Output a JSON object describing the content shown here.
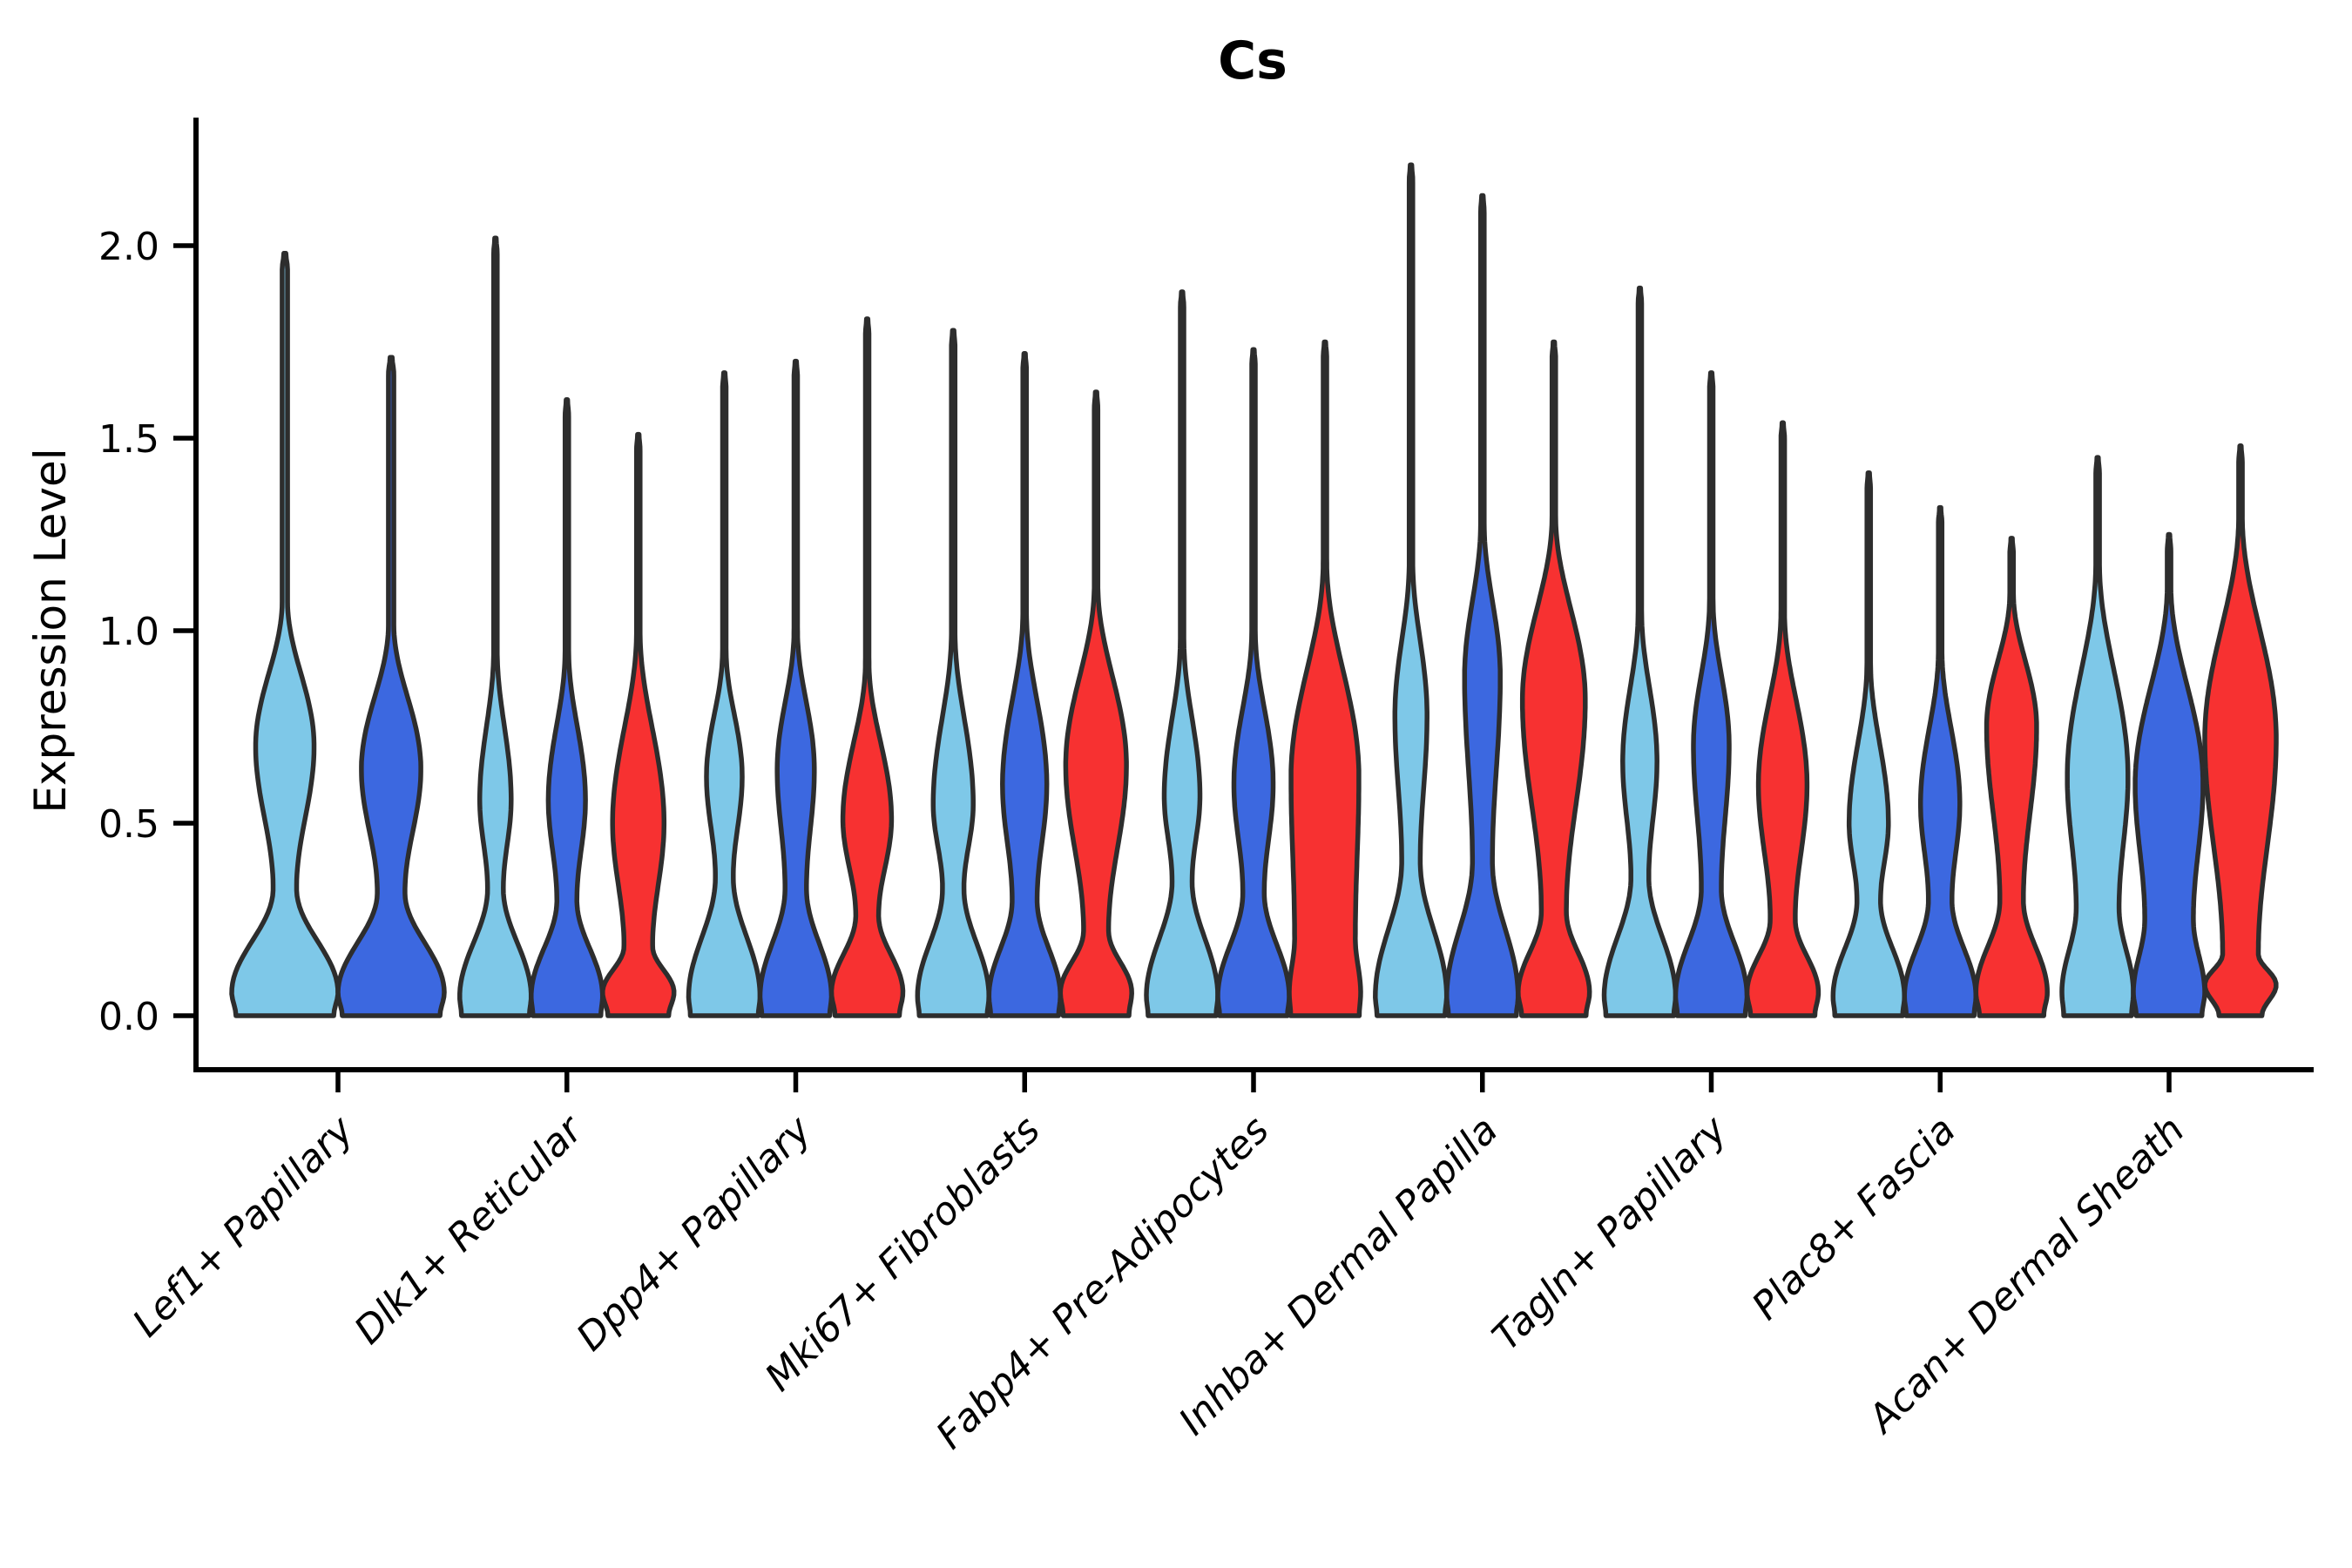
{
  "chart_data": {
    "type": "violin",
    "title": "Cs",
    "xlabel": "",
    "ylabel": "Expression Level",
    "ytick_labels": [
      "0.0",
      "0.5",
      "1.0",
      "1.5",
      "2.0"
    ],
    "ytick_values": [
      0.0,
      0.5,
      1.0,
      1.5,
      2.0
    ],
    "ylim": [
      -0.14,
      2.32
    ],
    "grid": false,
    "legend_position": "none",
    "series_colors": [
      "#7EC8E8",
      "#3C68E0",
      "#F73131"
    ],
    "outline_color": "#2D2D2D",
    "spine_color": "#000000",
    "categories": [
      "Lef1+ Papillary",
      "Dlk1+ Reticular",
      "Dpp4+ Papillary",
      "Mki67+ Fibroblasts",
      "Fabp4+ Pre-Adipocytes",
      "Inhba+ Dermal Papilla",
      "Tagln+ Papillary",
      "Plac8+ Fascia",
      "Acan+ Dermal Sheath"
    ],
    "groups": [
      {
        "category": "Lef1+ Papillary",
        "violins": [
          {
            "series": 0,
            "max": 1.98,
            "base": 0.92,
            "lobe_y": 0.06,
            "waist_y": 0.33,
            "waist_w": 0.22,
            "bulge_y": 0.7,
            "bulge_w": 0.55,
            "neck_y": 1.08
          },
          {
            "series": 1,
            "max": 1.71,
            "base": 0.92,
            "lobe_y": 0.06,
            "waist_y": 0.32,
            "waist_w": 0.26,
            "bulge_y": 0.64,
            "bulge_w": 0.56,
            "neck_y": 1.02
          }
        ]
      },
      {
        "category": "Dlk1+ Reticular",
        "violins": [
          {
            "series": 0,
            "max": 2.02,
            "base": 0.95,
            "lobe_y": 0.05,
            "waist_y": 0.33,
            "waist_w": 0.22,
            "bulge_y": 0.56,
            "bulge_w": 0.44,
            "neck_y": 0.95
          },
          {
            "series": 1,
            "max": 1.6,
            "base": 0.95,
            "lobe_y": 0.05,
            "waist_y": 0.3,
            "waist_w": 0.28,
            "bulge_y": 0.56,
            "bulge_w": 0.52,
            "neck_y": 0.95
          },
          {
            "series": 2,
            "max": 1.51,
            "base": 0.85,
            "lobe_y": 0.06,
            "waist_y": 0.18,
            "waist_w": 0.4,
            "bulge_y": 0.5,
            "bulge_w": 0.72,
            "neck_y": 1.0
          }
        ]
      },
      {
        "category": "Dpp4+ Papillary",
        "violins": [
          {
            "series": 0,
            "max": 1.67,
            "base": 0.95,
            "lobe_y": 0.05,
            "waist_y": 0.36,
            "waist_w": 0.25,
            "bulge_y": 0.62,
            "bulge_w": 0.5,
            "neck_y": 0.95
          },
          {
            "series": 1,
            "max": 1.7,
            "base": 0.95,
            "lobe_y": 0.05,
            "waist_y": 0.33,
            "waist_w": 0.3,
            "bulge_y": 0.64,
            "bulge_w": 0.52,
            "neck_y": 1.0
          },
          {
            "series": 2,
            "max": 1.81,
            "base": 0.9,
            "lobe_y": 0.06,
            "waist_y": 0.26,
            "waist_w": 0.32,
            "bulge_y": 0.51,
            "bulge_w": 0.68,
            "neck_y": 0.92
          }
        ]
      },
      {
        "category": "Mki67+ Fibroblasts",
        "violins": [
          {
            "series": 0,
            "max": 1.78,
            "base": 0.95,
            "lobe_y": 0.05,
            "waist_y": 0.33,
            "waist_w": 0.3,
            "bulge_y": 0.55,
            "bulge_w": 0.56,
            "neck_y": 1.0
          },
          {
            "series": 1,
            "max": 1.72,
            "base": 0.95,
            "lobe_y": 0.05,
            "waist_y": 0.3,
            "waist_w": 0.35,
            "bulge_y": 0.6,
            "bulge_w": 0.62,
            "neck_y": 1.05
          },
          {
            "series": 2,
            "max": 1.62,
            "base": 0.92,
            "lobe_y": 0.06,
            "waist_y": 0.22,
            "waist_w": 0.35,
            "bulge_y": 0.65,
            "bulge_w": 0.85,
            "neck_y": 1.12
          }
        ]
      },
      {
        "category": "Fabp4+ Pre-Adipocytes",
        "violins": [
          {
            "series": 0,
            "max": 1.88,
            "base": 0.95,
            "lobe_y": 0.05,
            "waist_y": 0.35,
            "waist_w": 0.28,
            "bulge_y": 0.57,
            "bulge_w": 0.5,
            "neck_y": 0.98
          },
          {
            "series": 1,
            "max": 1.73,
            "base": 0.95,
            "lobe_y": 0.05,
            "waist_y": 0.32,
            "waist_w": 0.3,
            "bulge_y": 0.6,
            "bulge_w": 0.55,
            "neck_y": 1.0
          },
          {
            "series": 2,
            "max": 1.75,
            "base": 0.96,
            "lobe_y": 0.06,
            "waist_y": 0.2,
            "waist_w": 0.85,
            "bulge_y": 0.62,
            "bulge_w": 0.95,
            "neck_y": 1.18
          }
        ]
      },
      {
        "category": "Inhba+ Dermal Papilla",
        "violins": [
          {
            "series": 0,
            "max": 2.21,
            "base": 0.95,
            "lobe_y": 0.05,
            "waist_y": 0.4,
            "waist_w": 0.26,
            "bulge_y": 0.78,
            "bulge_w": 0.45,
            "neck_y": 1.18
          },
          {
            "series": 1,
            "max": 2.13,
            "base": 0.95,
            "lobe_y": 0.05,
            "waist_y": 0.4,
            "waist_w": 0.28,
            "bulge_y": 0.88,
            "bulge_w": 0.5,
            "neck_y": 1.28
          },
          {
            "series": 2,
            "max": 1.75,
            "base": 0.9,
            "lobe_y": 0.06,
            "waist_y": 0.27,
            "waist_w": 0.35,
            "bulge_y": 0.82,
            "bulge_w": 0.88,
            "neck_y": 1.3
          }
        ]
      },
      {
        "category": "Tagln+ Papillary",
        "violins": [
          {
            "series": 0,
            "max": 1.89,
            "base": 0.95,
            "lobe_y": 0.05,
            "waist_y": 0.36,
            "waist_w": 0.25,
            "bulge_y": 0.66,
            "bulge_w": 0.48,
            "neck_y": 1.05
          },
          {
            "series": 1,
            "max": 1.67,
            "base": 0.95,
            "lobe_y": 0.05,
            "waist_y": 0.33,
            "waist_w": 0.28,
            "bulge_y": 0.7,
            "bulge_w": 0.5,
            "neck_y": 1.08
          },
          {
            "series": 2,
            "max": 1.54,
            "base": 0.9,
            "lobe_y": 0.06,
            "waist_y": 0.25,
            "waist_w": 0.35,
            "bulge_y": 0.6,
            "bulge_w": 0.68,
            "neck_y": 1.05
          }
        ]
      },
      {
        "category": "Plac8+ Fascia",
        "violins": [
          {
            "series": 0,
            "max": 1.41,
            "base": 0.95,
            "lobe_y": 0.05,
            "waist_y": 0.3,
            "waist_w": 0.33,
            "bulge_y": 0.5,
            "bulge_w": 0.55,
            "neck_y": 0.92
          },
          {
            "series": 1,
            "max": 1.32,
            "base": 0.95,
            "lobe_y": 0.05,
            "waist_y": 0.3,
            "waist_w": 0.33,
            "bulge_y": 0.55,
            "bulge_w": 0.55,
            "neck_y": 0.95
          },
          {
            "series": 2,
            "max": 1.24,
            "base": 0.9,
            "lobe_y": 0.06,
            "waist_y": 0.3,
            "waist_w": 0.33,
            "bulge_y": 0.75,
            "bulge_w": 0.7,
            "neck_y": 1.1
          }
        ]
      },
      {
        "category": "Acan+ Dermal Sheath",
        "violins": [
          {
            "series": 0,
            "max": 1.45,
            "base": 0.95,
            "lobe_y": 0.06,
            "waist_y": 0.28,
            "waist_w": 0.6,
            "bulge_y": 0.62,
            "bulge_w": 0.85,
            "neck_y": 1.18
          },
          {
            "series": 1,
            "max": 1.25,
            "base": 0.92,
            "lobe_y": 0.06,
            "waist_y": 0.25,
            "waist_w": 0.68,
            "bulge_y": 0.6,
            "bulge_w": 0.95,
            "neck_y": 1.12
          },
          {
            "series": 2,
            "max": 1.48,
            "base": 0.6,
            "lobe_y": 0.08,
            "waist_y": 0.16,
            "waist_w": 0.5,
            "bulge_y": 0.72,
            "bulge_w": 1.0,
            "neck_y": 1.3
          }
        ]
      }
    ]
  }
}
